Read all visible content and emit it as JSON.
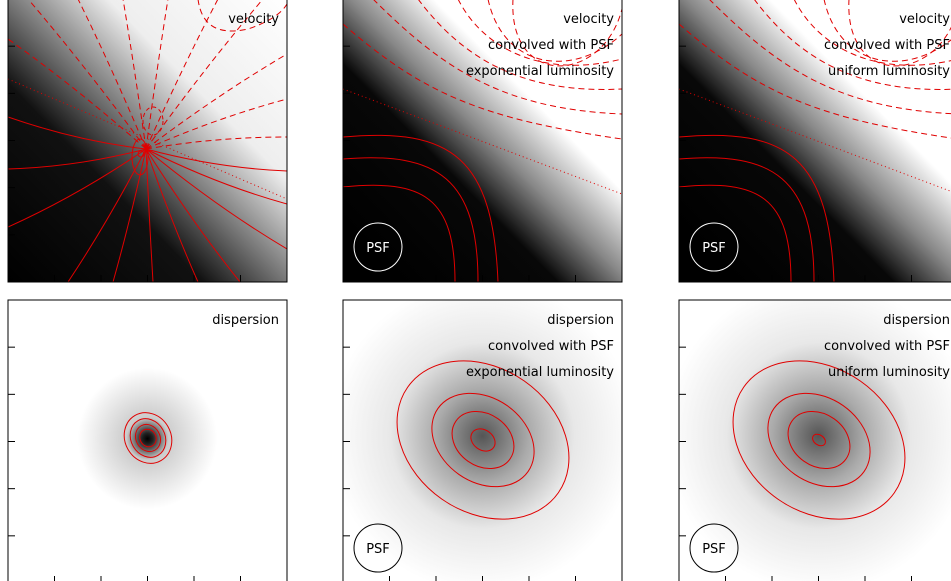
{
  "panels": [
    {
      "kind": "velocity",
      "lines": [
        "velocity"
      ]
    },
    {
      "kind": "velocity-psf",
      "lines": [
        "velocity",
        "convolved with PSF",
        "exponential luminosity"
      ],
      "psf": "PSF"
    },
    {
      "kind": "velocity-psf",
      "lines": [
        "velocity",
        "convolved with PSF",
        "uniform luminosity"
      ],
      "psf": "PSF"
    },
    {
      "kind": "dispersion",
      "lines": [
        "dispersion"
      ]
    },
    {
      "kind": "dispersion-psf",
      "lines": [
        "dispersion",
        "convolved with PSF",
        "exponential luminosity"
      ],
      "psf": "PSF"
    },
    {
      "kind": "dispersion-psf",
      "lines": [
        "dispersion",
        "convolved with PSF",
        "uniform luminosity"
      ],
      "psf": "PSF"
    }
  ]
}
